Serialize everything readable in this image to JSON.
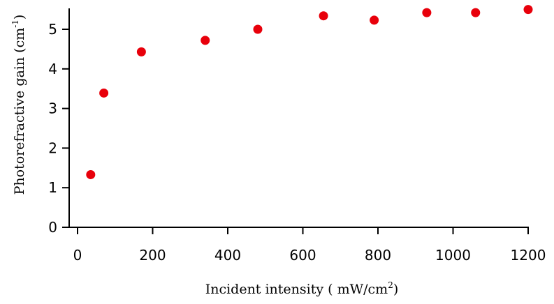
{
  "chart_data": {
    "type": "scatter",
    "xlabel": "Incident intensity ( mW/cm",
    "xlabel_sup": "2",
    "xlabel_suffix": ")",
    "ylabel": "Photorefractive gain (cm",
    "ylabel_sup": "-1",
    "ylabel_suffix": ")",
    "xlim": [
      0,
      1200
    ],
    "ylim": [
      0,
      5.5
    ],
    "x_ticks": [
      0,
      200,
      400,
      600,
      800,
      1000,
      1200
    ],
    "y_ticks": [
      0,
      1,
      2,
      3,
      4,
      5
    ],
    "grid": false,
    "series": [
      {
        "color": "#e8000b",
        "x": [
          35,
          70,
          170,
          340,
          480,
          655,
          790,
          930,
          1060,
          1200
        ],
        "y": [
          1.33,
          3.39,
          4.43,
          4.72,
          5.0,
          5.34,
          5.23,
          5.42,
          5.42,
          5.5
        ]
      }
    ]
  }
}
